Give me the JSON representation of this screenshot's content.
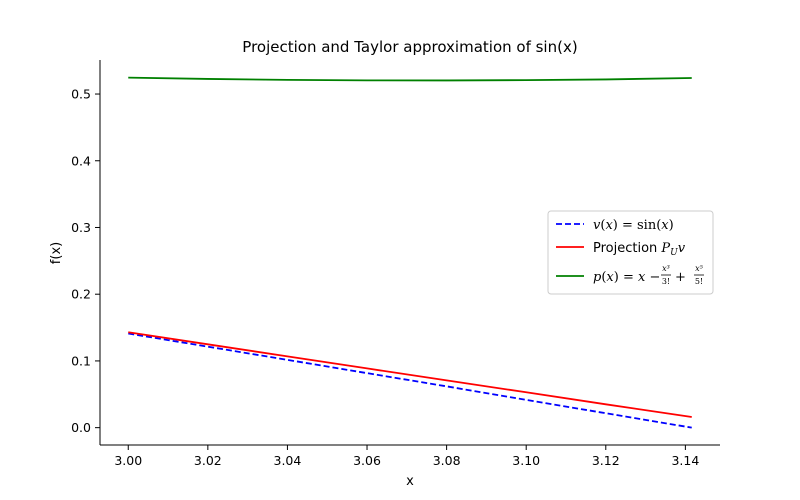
{
  "chart_data": {
    "type": "line",
    "title": "Projection and Taylor approximation of sin(x)",
    "xlabel": "x",
    "ylabel": "f(x)",
    "xlim": [
      2.9929,
      3.1487
    ],
    "ylim": [
      -0.026,
      0.551
    ],
    "xticks": [
      3.0,
      3.02,
      3.04,
      3.06,
      3.08,
      3.1,
      3.12,
      3.14
    ],
    "xtick_labels": [
      "3.00",
      "3.02",
      "3.04",
      "3.06",
      "3.08",
      "3.10",
      "3.12",
      "3.14"
    ],
    "yticks": [
      0.0,
      0.1,
      0.2,
      0.3,
      0.4,
      0.5
    ],
    "ytick_labels": [
      "0.0",
      "0.1",
      "0.2",
      "0.3",
      "0.4",
      "0.5"
    ],
    "grid": false,
    "legend_position": "center-right",
    "series": [
      {
        "name": "v(x) = sin(x)",
        "color": "#0000ff",
        "style": "dashed",
        "x": [
          3.0,
          3.02,
          3.04,
          3.06,
          3.08,
          3.1,
          3.12,
          3.1416
        ],
        "y": [
          0.1411,
          0.1214,
          0.1016,
          0.0817,
          0.0619,
          0.0416,
          0.0216,
          0.0
        ]
      },
      {
        "name": "Projection P_U v",
        "color": "#ff0000",
        "style": "solid",
        "x": [
          3.0,
          3.02,
          3.04,
          3.06,
          3.08,
          3.1,
          3.12,
          3.1416
        ],
        "y": [
          0.143,
          0.1249,
          0.1068,
          0.0888,
          0.0708,
          0.053,
          0.035,
          0.016
        ]
      },
      {
        "name": "p(x) = x − x³/3! + x⁵/5!",
        "color": "#008000",
        "style": "solid",
        "x": [
          3.0,
          3.02,
          3.04,
          3.06,
          3.08,
          3.1,
          3.12,
          3.1416
        ],
        "y": [
          0.5246,
          0.5226,
          0.5212,
          0.5205,
          0.5204,
          0.5208,
          0.5219,
          0.524
        ]
      }
    ]
  }
}
